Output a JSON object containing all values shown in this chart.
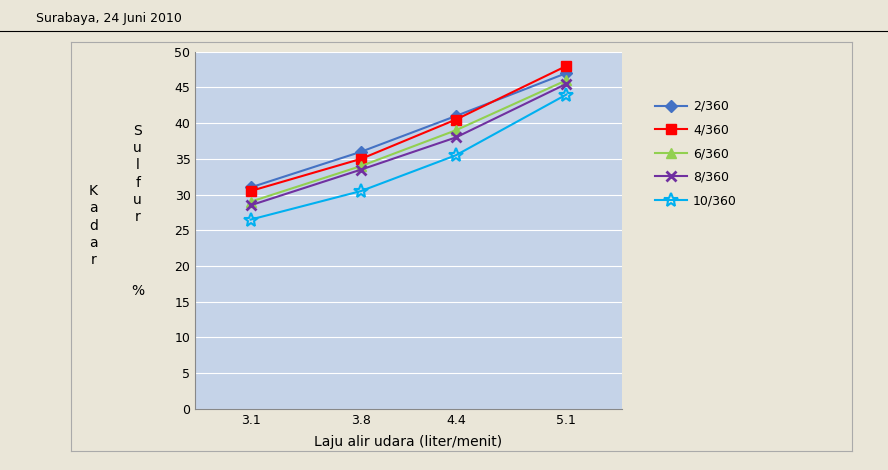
{
  "header_text": "Surabaya, 24 Juni 2010",
  "xlabel": "Laju alir udara (liter/menit)",
  "x_values": [
    3.1,
    3.8,
    4.4,
    5.1
  ],
  "series": [
    {
      "label": "2/360",
      "color": "#4472C4",
      "marker": "D",
      "y_values": [
        31.0,
        36.0,
        41.0,
        47.0
      ]
    },
    {
      "label": "4/360",
      "color": "#FF0000",
      "marker": "s",
      "y_values": [
        30.5,
        35.0,
        40.5,
        48.0
      ]
    },
    {
      "label": "6/360",
      "color": "#92D050",
      "marker": "^",
      "y_values": [
        29.0,
        34.0,
        39.0,
        46.0
      ]
    },
    {
      "label": "8/360",
      "color": "#7030A0",
      "marker": "x",
      "y_values": [
        28.5,
        33.5,
        38.0,
        45.5
      ]
    },
    {
      "label": "10/360",
      "color": "#00B0F0",
      "marker": "*",
      "y_values": [
        26.5,
        30.5,
        35.5,
        44.0
      ]
    }
  ],
  "ylim": [
    0,
    50
  ],
  "yticks": [
    0,
    5,
    10,
    15,
    20,
    25,
    30,
    35,
    40,
    45,
    50
  ],
  "plot_bg_color": "#C5D3E8",
  "outer_bg_color": "#EAE6D8",
  "fig_bg_color": "#EAE6D8",
  "grid_color": "#FFFFFF",
  "header_fontsize": 9,
  "axis_label_fontsize": 10,
  "tick_fontsize": 9,
  "legend_fontsize": 9
}
